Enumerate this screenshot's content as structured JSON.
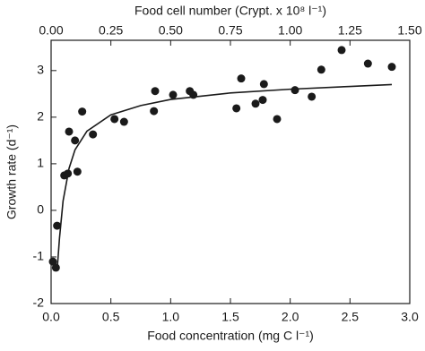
{
  "chart_data": {
    "type": "scatter",
    "xlabel": "Food concentration (mg C l⁻¹)",
    "x2label": "Food cell number (Crypt. x 10⁸ l⁻¹)",
    "ylabel": "Growth rate (d⁻¹)",
    "xlim": [
      0,
      3.0
    ],
    "xticks": [
      {
        "value": 0,
        "label": "0.0"
      },
      0.5,
      {
        "value": 1,
        "label": "1.0"
      },
      1.5,
      {
        "value": 2,
        "label": "2.0"
      },
      2.5,
      {
        "value": 3,
        "label": "3.0"
      }
    ],
    "x2lim": [
      0,
      1.5
    ],
    "x2ticks": [
      {
        "value": 0,
        "label": "0.00"
      },
      0.25,
      {
        "value": 0.5,
        "label": "0.50"
      },
      0.75,
      {
        "value": 1,
        "label": "1.00"
      },
      1.25,
      {
        "value": 1.5,
        "label": "1.50"
      }
    ],
    "ylim": [
      -2,
      3.65
    ],
    "yticks": [
      -2,
      -1,
      0,
      1,
      2,
      3
    ],
    "series": [
      {
        "mode": "markers",
        "color": "#1a1a1a",
        "x": [
          0.015,
          0.04,
          0.05,
          0.11,
          0.14,
          0.15,
          0.2,
          0.22,
          0.26,
          0.35,
          0.53,
          0.61,
          0.87,
          0.86,
          1.02,
          1.16,
          1.19,
          1.55,
          1.59,
          1.71,
          1.77,
          1.78,
          1.89,
          2.04,
          2.18,
          2.26,
          2.43,
          2.65,
          2.85
        ],
        "values": [
          -1.1,
          -1.23,
          -0.33,
          0.75,
          0.79,
          1.69,
          1.5,
          0.83,
          2.12,
          1.63,
          1.96,
          1.9,
          2.56,
          2.13,
          2.48,
          2.56,
          2.48,
          2.19,
          2.83,
          2.29,
          2.37,
          2.71,
          1.96,
          2.58,
          2.44,
          3.02,
          3.44,
          3.15,
          3.08
        ]
      },
      {
        "mode": "line",
        "color": "#1a1a1a",
        "x": [
          0.05,
          0.07,
          0.1,
          0.15,
          0.2,
          0.3,
          0.5,
          0.75,
          1.0,
          1.5,
          2.0,
          2.5,
          2.85
        ],
        "values": [
          -1.3,
          -0.6,
          0.2,
          0.9,
          1.3,
          1.7,
          2.05,
          2.25,
          2.38,
          2.52,
          2.6,
          2.66,
          2.7
        ]
      }
    ]
  }
}
